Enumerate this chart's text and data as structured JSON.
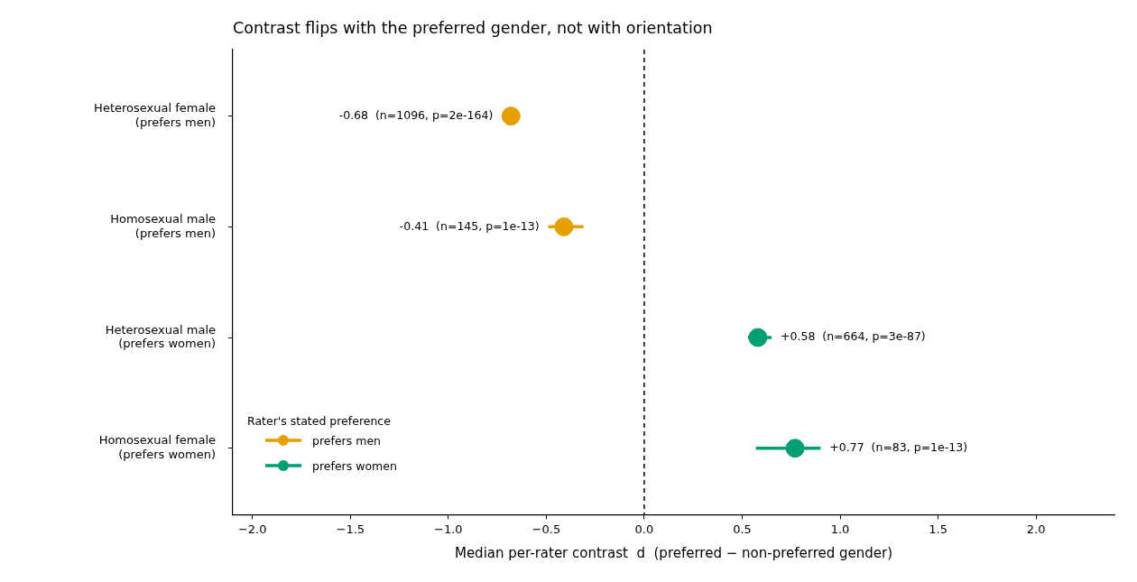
{
  "chart_data": {
    "type": "scatter",
    "orientation": "horizontal",
    "title": "Contrast flips with the preferred gender, not with orientation",
    "xlabel": "Median per-rater contrast  d  (preferred − non-preferred gender)",
    "categories": [
      "Heterosexual female\n(prefers men)",
      "Homosexual male\n(prefers men)",
      "Heterosexual male\n(prefers women)",
      "Homosexual female\n(prefers women)"
    ],
    "series": [
      {
        "name": "prefers men",
        "color": "#e69f00",
        "values": [
          -0.68,
          -0.41,
          null,
          null
        ],
        "errors": [
          null,
          [
            -0.49,
            -0.31
          ],
          null,
          null
        ],
        "value_labels": [
          "-0.68  (n=1096, p=2e-164)",
          "-0.41  (n=145, p=1e-13)",
          null,
          null
        ]
      },
      {
        "name": "prefers women",
        "color": "#009e73",
        "values": [
          null,
          null,
          0.58,
          0.77
        ],
        "errors": [
          null,
          null,
          [
            0.53,
            0.65
          ],
          [
            0.57,
            0.9
          ]
        ],
        "value_labels": [
          null,
          null,
          "+0.58  (n=664, p=3e-87)",
          "+0.77  (n=83, p=1e-13)"
        ]
      }
    ],
    "xlim": [
      -2.1,
      2.4
    ],
    "xticks": [
      {
        "value": -2,
        "label": "−2.0"
      },
      {
        "value": -1.5,
        "label": "−1.5"
      },
      {
        "value": -1,
        "label": "−1.0"
      },
      {
        "value": -0.5,
        "label": "−0.5"
      },
      {
        "value": 0,
        "label": "0.0"
      },
      {
        "value": 0.5,
        "label": "0.5"
      },
      {
        "value": 1,
        "label": "1.0"
      },
      {
        "value": 1.5,
        "label": "1.5"
      },
      {
        "value": 2,
        "label": "2.0"
      }
    ],
    "ref_lines": [
      {
        "axis": "x",
        "value": 0,
        "color": "#000000",
        "line_style": "dashed"
      }
    ],
    "legend": "bottom left",
    "legend_title": "Rater's stated preference",
    "grid": false,
    "marker": "circle"
  }
}
